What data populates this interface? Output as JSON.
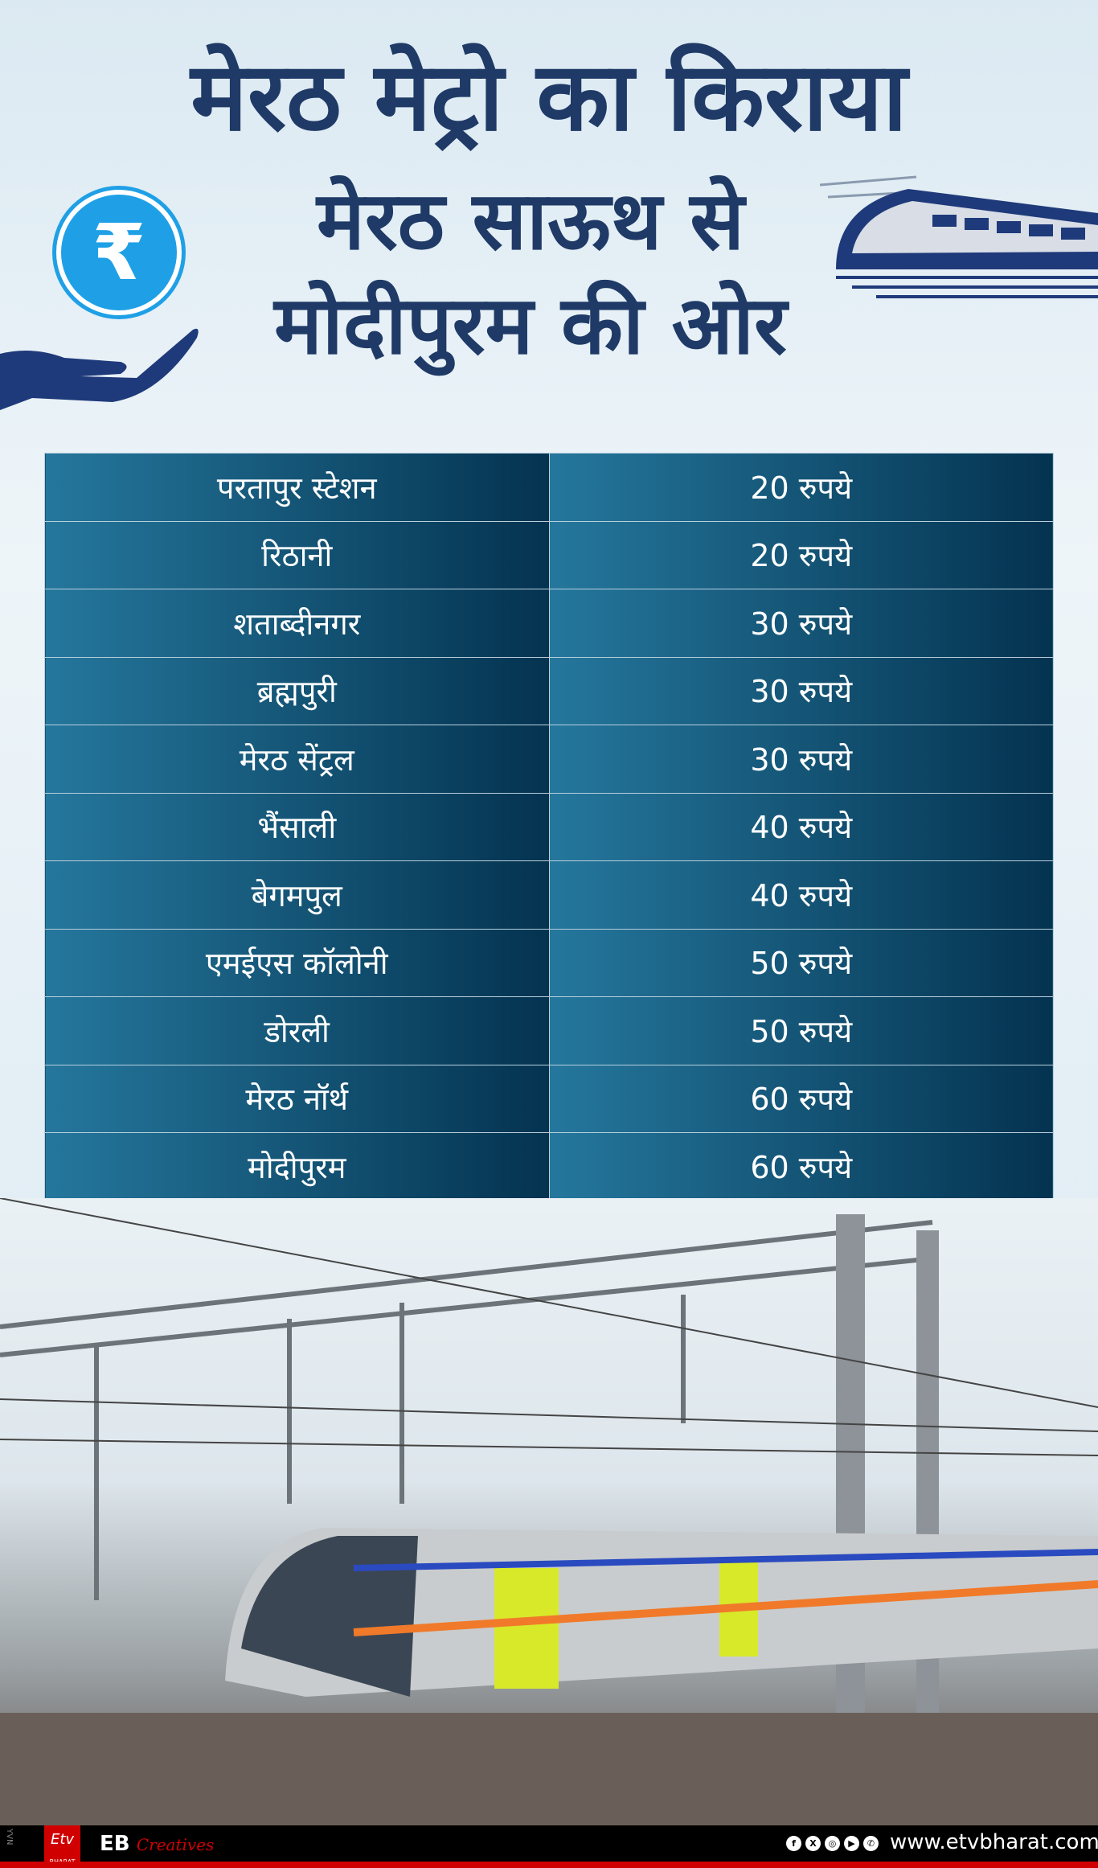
{
  "title": {
    "line1": "मेरठ मेट्रो का किराया",
    "line2": "मेरठ साऊथ से",
    "line3": "मोदीपुरम की ओर"
  },
  "icons": {
    "rupee": "₹",
    "hand": "hand-icon",
    "train": "train-icon"
  },
  "fares": [
    {
      "station": "परतापुर स्टेशन",
      "fare": "20 रुपये"
    },
    {
      "station": "रिठानी",
      "fare": "20 रुपये"
    },
    {
      "station": "शताब्दीनगर",
      "fare": "30 रुपये"
    },
    {
      "station": "ब्रह्मपुरी",
      "fare": "30 रुपये"
    },
    {
      "station": "मेरठ सेंट्रल",
      "fare": "30 रुपये"
    },
    {
      "station": "भैंसाली",
      "fare": "40 रुपये"
    },
    {
      "station": "बेगमपुल",
      "fare": "40 रुपये"
    },
    {
      "station": "एमईएस कॉलोनी",
      "fare": "50 रुपये"
    },
    {
      "station": "डोरली",
      "fare": "50 रुपये"
    },
    {
      "station": "मेरठ नॉर्थ",
      "fare": "60 रुपये"
    },
    {
      "station": "मोदीपुरम",
      "fare": "60 रुपये"
    }
  ],
  "footer": {
    "side_text": "YVN",
    "logo": "Etv",
    "logo_sub": "BHARAT",
    "brand": "EB",
    "brand_script": "Creatives",
    "social": [
      "f",
      "X",
      "◎",
      "▶",
      "✆"
    ],
    "url": "www.etvbharat.com"
  },
  "colors": {
    "title": "#1f3a66",
    "table_start": "#25779d",
    "table_end": "#043350",
    "footer_red": "#d10000"
  }
}
